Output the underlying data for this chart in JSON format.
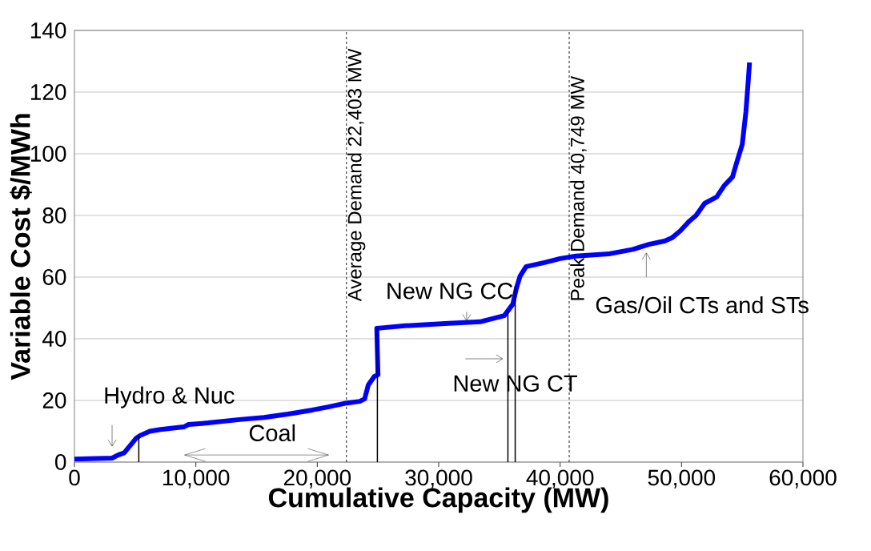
{
  "chart_data": {
    "type": "line",
    "xlabel": "Cumulative Capacity (MW)",
    "ylabel": "Variable Cost $/MWh",
    "xlim": [
      0,
      60000
    ],
    "ylim": [
      0,
      140
    ],
    "xticks": [
      0,
      {
        "value": 10000,
        "label": "10,000"
      },
      {
        "value": 20000,
        "label": "20,000"
      },
      {
        "value": 30000,
        "label": "30,000"
      },
      {
        "value": 40000,
        "label": "40,000"
      },
      {
        "value": 50000,
        "label": "50,000"
      },
      {
        "value": 60000,
        "label": "60,000"
      }
    ],
    "yticks": [
      0,
      20,
      40,
      60,
      80,
      100,
      120,
      140
    ],
    "grid": "y",
    "marker": "none",
    "line_style": "solid",
    "series": [
      {
        "color": "#0000ff",
        "x": [
          0,
          3100,
          3600,
          4100,
          5100,
          5400,
          6200,
          7100,
          9000,
          9400,
          11000,
          13600,
          15600,
          17600,
          19600,
          20900,
          22200,
          23500,
          23900,
          24200,
          24700,
          25000,
          24900,
          25500,
          27200,
          28200,
          30800,
          33400,
          34400,
          35400,
          36100,
          36400,
          36700,
          37200,
          38700,
          40000,
          41300,
          44000,
          46000,
          47300,
          48600,
          49200,
          49900,
          50600,
          51200,
          51900,
          52900,
          53500,
          54200,
          54500,
          55000,
          55300,
          55500,
          55600
        ],
        "values": [
          1,
          1.3,
          2.3,
          3,
          7.8,
          8.6,
          10,
          10.6,
          11.4,
          12.2,
          12.7,
          13.8,
          14.5,
          15.6,
          16.9,
          17.9,
          19,
          19.7,
          20.5,
          25,
          27.8,
          28.3,
          43.4,
          43.6,
          44.2,
          44.4,
          45,
          45.5,
          46.5,
          47.5,
          51.2,
          56.4,
          60.3,
          63.4,
          64.7,
          66,
          66.8,
          67.5,
          69,
          70.6,
          71.7,
          72.7,
          75,
          78,
          80,
          83.9,
          86,
          89.6,
          92.5,
          96.6,
          103,
          113.5,
          123.9,
          129.6
        ]
      },
      {
        "type": "bar",
        "color": "#000000",
        "x": [
          5300,
          24950,
          35700,
          36300
        ],
        "values": [
          8.3,
          43.4,
          49,
          57
        ]
      }
    ],
    "ref_lines": [
      {
        "axis": "x",
        "value": 22403,
        "label": "Average Demand 22,403 MW",
        "color": "#000000",
        "line_style": "dashed"
      },
      {
        "axis": "x",
        "value": 40749,
        "label": "Peak Demand 40,749 MW",
        "color": "#000000",
        "line_style": "dashed"
      }
    ],
    "annotations": [
      "Hydro & Nuc",
      "Coal",
      {
        "text": "New NG CC",
        "x": 32300,
        "y": 45.7
      },
      "New NG CT",
      "Gas/Oil CTs and STs"
    ]
  }
}
